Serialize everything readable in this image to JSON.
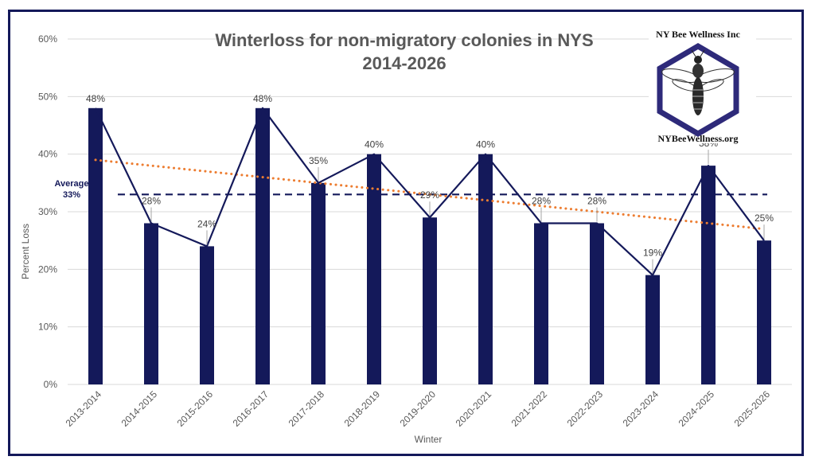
{
  "chart_data": {
    "type": "bar",
    "title": [
      "Winterloss for non-migratory colonies in NYS",
      "2014-2026"
    ],
    "xlabel": "Winter",
    "ylabel": "Percent Loss",
    "ylim": [
      0,
      60
    ],
    "yticks": [
      "0%",
      "10%",
      "20%",
      "30%",
      "40%",
      "50%",
      "60%"
    ],
    "grid": true,
    "categories": [
      "2013-2014",
      "2014-2015",
      "2015-2016",
      "2016-2017",
      "2017-2018",
      "2018-2019",
      "2019-2020",
      "2020-2021",
      "2021-2022",
      "2022-2023",
      "2023-2024",
      "2024-2025",
      "2025-2026"
    ],
    "values": [
      48,
      28,
      24,
      48,
      35,
      40,
      29,
      40,
      28,
      28,
      19,
      38,
      25
    ],
    "data_labels": [
      "48%",
      "28%",
      "24%",
      "48%",
      "35%",
      "40%",
      "29%",
      "40%",
      "28%",
      "28%",
      "19%",
      "38%",
      "25%"
    ],
    "overlay_line": true,
    "average": {
      "value": 33,
      "label_line1": "Average",
      "label_line2": "33%"
    },
    "trendline": {
      "start": 39,
      "end": 27
    },
    "colors": {
      "bars": "#14195a",
      "line": "#14195a",
      "average": "#14195a",
      "trend": "#ed7d31",
      "grid": "#d9d9d9",
      "frame": "#14195a"
    }
  },
  "logo": {
    "top_text": "NY Bee Wellness Inc",
    "bottom_text": "NYBeeWellness.org",
    "icon": "bee-icon"
  }
}
